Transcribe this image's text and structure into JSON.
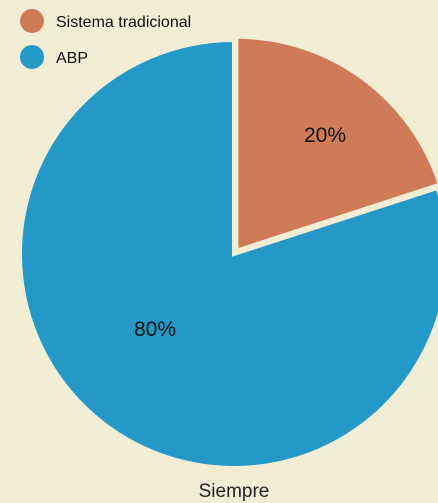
{
  "chart_data": {
    "type": "pie",
    "category": "Siempre",
    "series": [
      {
        "name": "Sistema tradicional",
        "value": 20,
        "label": "20%",
        "color": "#cf7b58"
      },
      {
        "name": "ABP",
        "value": 80,
        "label": "80%",
        "color": "#2499c7"
      }
    ],
    "legend_position": "top-left",
    "start_angle_deg": 0,
    "direction": "clockwise"
  },
  "colors": {
    "background": "#f2eed6",
    "slice_border": "#f2eed6"
  }
}
